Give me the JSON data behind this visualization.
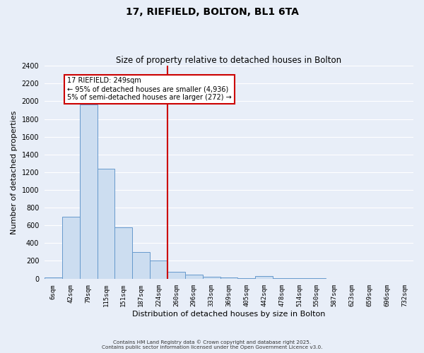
{
  "title": "17, RIEFIELD, BOLTON, BL1 6TA",
  "subtitle": "Size of property relative to detached houses in Bolton",
  "xlabel": "Distribution of detached houses by size in Bolton",
  "ylabel": "Number of detached properties",
  "categories": [
    "6sqm",
    "42sqm",
    "79sqm",
    "115sqm",
    "151sqm",
    "187sqm",
    "224sqm",
    "260sqm",
    "296sqm",
    "333sqm",
    "369sqm",
    "405sqm",
    "442sqm",
    "478sqm",
    "514sqm",
    "550sqm",
    "587sqm",
    "623sqm",
    "659sqm",
    "696sqm",
    "732sqm"
  ],
  "values": [
    15,
    700,
    1960,
    1240,
    575,
    300,
    200,
    80,
    45,
    20,
    10,
    5,
    30,
    5,
    2,
    2,
    0,
    0,
    0,
    0,
    0
  ],
  "bar_color": "#ccddf0",
  "bar_edge_color": "#6699cc",
  "vline_x": 7,
  "vline_color": "#cc0000",
  "annotation_title": "17 RIEFIELD: 249sqm",
  "annotation_line1": "← 95% of detached houses are smaller (4,936)",
  "annotation_line2": "5% of semi-detached houses are larger (272) →",
  "annotation_box_color": "#ffffff",
  "annotation_box_edge_color": "#cc0000",
  "ylim": [
    0,
    2400
  ],
  "yticks": [
    0,
    200,
    400,
    600,
    800,
    1000,
    1200,
    1400,
    1600,
    1800,
    2000,
    2200,
    2400
  ],
  "bg_color": "#e8eef8",
  "plot_bg_color": "#e8eef8",
  "grid_color": "#ffffff",
  "footer_line1": "Contains HM Land Registry data © Crown copyright and database right 2025.",
  "footer_line2": "Contains public sector information licensed under the Open Government Licence v3.0."
}
